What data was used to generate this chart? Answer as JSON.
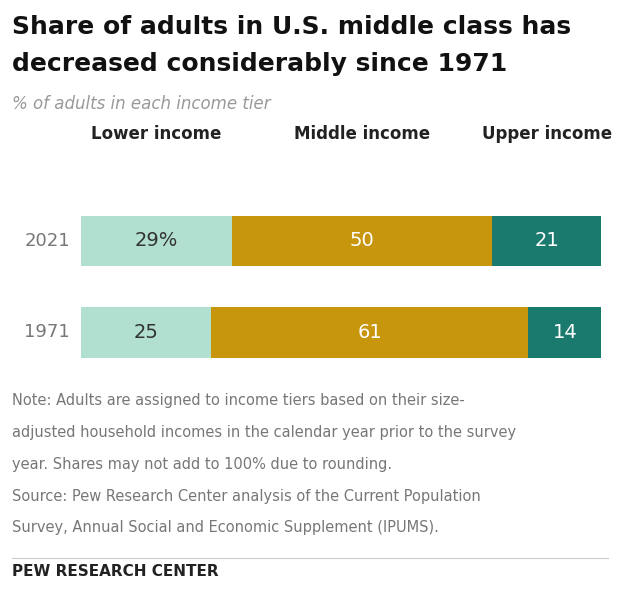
{
  "title_line1": "Share of adults in U.S. middle class has",
  "title_line2": "decreased considerably since 1971",
  "subtitle": "% of adults in each income tier",
  "years": [
    "2021",
    "1971"
  ],
  "lower_values": [
    29,
    25
  ],
  "middle_values": [
    50,
    61
  ],
  "upper_values": [
    21,
    14
  ],
  "lower_labels": [
    "29%",
    "25"
  ],
  "middle_labels": [
    "50",
    "61"
  ],
  "upper_labels": [
    "21",
    "14"
  ],
  "col_labels": [
    "Lower income",
    "Middle income",
    "Upper income"
  ],
  "lower_color": "#b2e0d0",
  "middle_color": "#c8960c",
  "upper_color": "#1a7a6e",
  "note_line1": "Note: Adults are assigned to income tiers based on their size-",
  "note_line2": "adjusted household incomes in the calendar year prior to the survey",
  "note_line3": "year. Shares may not add to 100% due to rounding.",
  "note_line4": "Source: Pew Research Center analysis of the Current Population",
  "note_line5": "Survey, Annual Social and Economic Supplement (IPUMS).",
  "source_label": "PEW RESEARCH CENTER",
  "background_color": "#ffffff",
  "lower_label_color": "#333333",
  "mid_label_color": "#ffffff",
  "upper_label_color": "#ffffff"
}
